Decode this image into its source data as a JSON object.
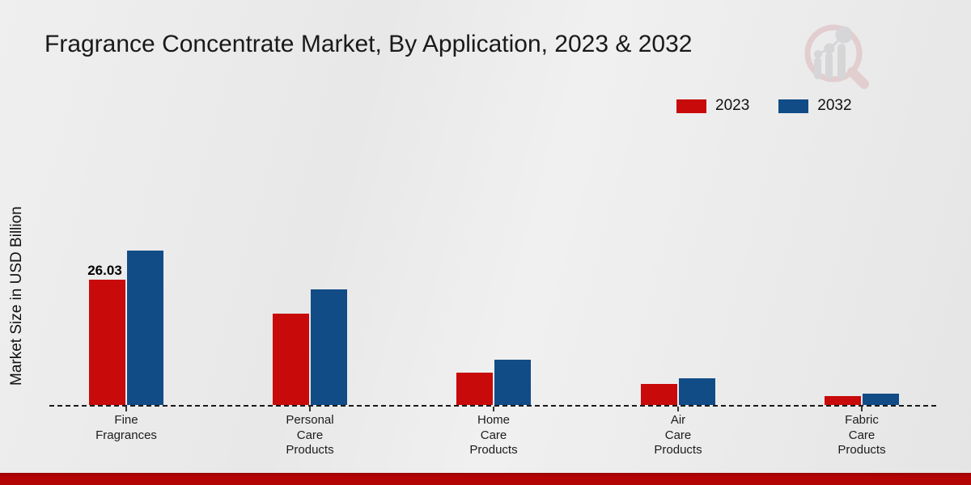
{
  "chart_data": {
    "type": "bar",
    "title": "Fragrance Concentrate Market, By Application, 2023 & 2032",
    "ylabel": "Market Size in USD Billion",
    "xlabel": "",
    "categories": [
      "Fine\nFragrances",
      "Personal\nCare\nProducts",
      "Home\nCare\nProducts",
      "Air\nCare\nProducts",
      "Fabric\nCare\nProducts"
    ],
    "series": [
      {
        "name": "2023",
        "color": "#c80a0a",
        "values": [
          26.03,
          19.0,
          6.8,
          4.4,
          1.9
        ]
      },
      {
        "name": "2032",
        "color": "#114c87",
        "values": [
          32.1,
          24.0,
          9.4,
          5.5,
          2.3
        ]
      }
    ],
    "annotations": [
      {
        "text": "26.03",
        "series": "2023",
        "category_index": 0
      }
    ],
    "legend_position": "top-right",
    "grid": false,
    "baseline_style": "dashed",
    "ylim": [
      0,
      35
    ]
  },
  "branding": {
    "logo_icon": "magnifier-bar-chart-logo",
    "footer_color": "#b20505"
  },
  "colors": {
    "background": "#ebebeb",
    "text": "#1a1a1a",
    "series_2023": "#c80a0a",
    "series_2032": "#114c87"
  }
}
